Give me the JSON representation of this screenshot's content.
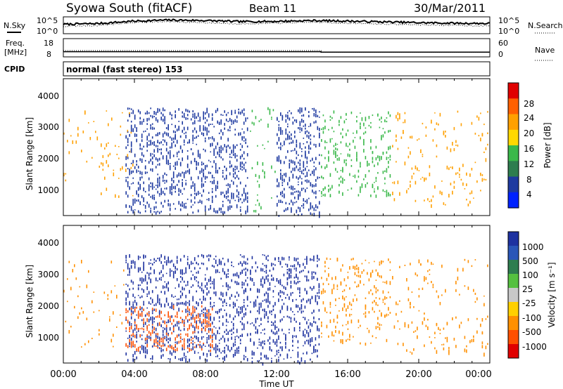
{
  "header": {
    "station": "Syowa South (fitACF)",
    "beam": "Beam 11",
    "date": "30/Mar/2011"
  },
  "noise_panel": {
    "left_label": "N.Sky",
    "right_label": "N.Search",
    "top_tick": "10^5",
    "bottom_tick": "10^0"
  },
  "freq_panel": {
    "left_label_line1": "Freq.",
    "left_label_line2": "[MHz]",
    "right_label": "Nave",
    "left_ticks": [
      "18",
      "8"
    ],
    "right_ticks": [
      "60",
      "0"
    ]
  },
  "cpid_panel": {
    "label": "CPID",
    "mode_text": "normal (fast stereo) 153"
  },
  "power_panel": {
    "ylabel": "Slant Range [km]",
    "yticks": [
      "4000",
      "3000",
      "2000",
      "1000"
    ],
    "colorbar_label": "Power [dB]",
    "colorbar_ticks": [
      "28",
      "24",
      "20",
      "16",
      "12",
      "8",
      "4"
    ],
    "colorbar_colors": [
      "#e00000",
      "#ff6000",
      "#ffa000",
      "#ffd800",
      "#3ab84a",
      "#2e7d4f",
      "#1e3aa0",
      "#0022ff"
    ]
  },
  "velocity_panel": {
    "ylabel": "Slant Range [km]",
    "yticks": [
      "4000",
      "3000",
      "2000",
      "1000"
    ],
    "colorbar_label": "Velocity  [m s⁻¹]",
    "colorbar_ticks": [
      "1000",
      "500",
      "100",
      "25",
      "-25",
      "-100",
      "-500",
      "-1000"
    ],
    "colorbar_colors": [
      "#1e32a0",
      "#2a56b8",
      "#2e7d4f",
      "#55c040",
      "#c8c8c8",
      "#ffd000",
      "#ff9000",
      "#ff5000",
      "#e00000"
    ]
  },
  "xaxis": {
    "label": "Time UT",
    "ticks": [
      "00:00",
      "04:00",
      "08:00",
      "12:00",
      "16:00",
      "20:00",
      "00:00"
    ]
  },
  "chart_data": [
    {
      "type": "line",
      "title": "Syowa South (fitACF)",
      "series": [
        {
          "name": "N.Sky",
          "x": [
            "00:00",
            "02:00",
            "04:00",
            "06:00",
            "08:00",
            "10:00",
            "12:00",
            "14:00",
            "16:00",
            "18:00",
            "20:00",
            "22:00",
            "24:00"
          ],
          "values_log10": [
            3.0,
            3.3,
            4.2,
            4.6,
            4.4,
            4.0,
            4.1,
            4.4,
            4.2,
            3.9,
            3.6,
            3.4,
            3.3
          ]
        },
        {
          "name": "N.Search",
          "x": [
            "00:00",
            "02:00",
            "04:00",
            "06:00",
            "08:00",
            "10:00",
            "12:00",
            "14:00",
            "16:00",
            "18:00",
            "20:00",
            "22:00",
            "24:00"
          ],
          "values_log10": [
            2.2,
            2.6,
            3.7,
            4.0,
            3.6,
            3.2,
            3.4,
            3.8,
            3.4,
            3.1,
            2.8,
            2.6,
            2.4
          ]
        }
      ],
      "ylim_log10": [
        0,
        5
      ]
    },
    {
      "type": "line",
      "series": [
        {
          "name": "Freq. [MHz]",
          "x": [
            "00:00",
            "14:30",
            "14:30",
            "24:00"
          ],
          "values": [
            10.8,
            10.8,
            10.5,
            10.5
          ]
        },
        {
          "name": "Nave",
          "x": [
            "00:00",
            "14:30",
            "14:30",
            "24:00"
          ],
          "values": [
            21,
            21,
            14,
            14
          ]
        }
      ],
      "ylim_left": [
        8,
        18
      ],
      "ylim_right": [
        0,
        60
      ]
    },
    {
      "type": "heatmap",
      "title": "Power",
      "xlabel": "Time UT",
      "ylabel": "Slant Range [km]",
      "xlim_hours": [
        0,
        24
      ],
      "ylim_km": [
        180,
        4500
      ],
      "colorbar": {
        "label": "Power [dB]",
        "ticks": [
          28,
          24,
          20,
          16,
          12,
          8,
          4
        ]
      },
      "regions": [
        {
          "t": [
            0.0,
            2.0
          ],
          "range": [
            700,
            3600
          ],
          "density": 0.06,
          "color": "#ffa000"
        },
        {
          "t": [
            2.0,
            4.0
          ],
          "range": [
            800,
            3500
          ],
          "density": 0.1,
          "color": "#ffa000"
        },
        {
          "t": [
            3.5,
            10.5
          ],
          "range": [
            300,
            3600
          ],
          "density": 0.55,
          "color": "#1e3aa0"
        },
        {
          "t": [
            10.5,
            12.0
          ],
          "range": [
            300,
            3600
          ],
          "density": 0.12,
          "color": "#3ab84a"
        },
        {
          "t": [
            12.0,
            14.5
          ],
          "range": [
            200,
            3600
          ],
          "density": 0.55,
          "color": "#1e3aa0"
        },
        {
          "t": [
            14.5,
            18.5
          ],
          "range": [
            800,
            3500
          ],
          "density": 0.28,
          "color": "#3ab84a"
        },
        {
          "t": [
            18.5,
            24.0
          ],
          "range": [
            500,
            3500
          ],
          "density": 0.12,
          "color": "#ffa000"
        }
      ]
    },
    {
      "type": "heatmap",
      "title": "Velocity",
      "xlabel": "Time UT",
      "ylabel": "Slant Range [km]",
      "xlim_hours": [
        0,
        24
      ],
      "ylim_km": [
        180,
        4500
      ],
      "colorbar": {
        "label": "Velocity [m s-1]",
        "ticks": [
          1000,
          500,
          100,
          25,
          -25,
          -100,
          -500,
          -1000
        ]
      },
      "regions": [
        {
          "t": [
            0.0,
            3.5
          ],
          "range": [
            700,
            3500
          ],
          "density": 0.08,
          "color": "#ff9000"
        },
        {
          "t": [
            3.5,
            10.5
          ],
          "range": [
            300,
            3600
          ],
          "density": 0.55,
          "color": "#1e32a0"
        },
        {
          "t": [
            3.5,
            8.5
          ],
          "range": [
            600,
            2000
          ],
          "density": 0.45,
          "color": "#ff5000"
        },
        {
          "t": [
            10.5,
            14.5
          ],
          "range": [
            200,
            3600
          ],
          "density": 0.45,
          "color": "#1e32a0"
        },
        {
          "t": [
            14.5,
            18.5
          ],
          "range": [
            800,
            3500
          ],
          "density": 0.25,
          "color": "#ff9000"
        },
        {
          "t": [
            18.5,
            24.0
          ],
          "range": [
            500,
            3500
          ],
          "density": 0.12,
          "color": "#ff9000"
        }
      ]
    }
  ]
}
